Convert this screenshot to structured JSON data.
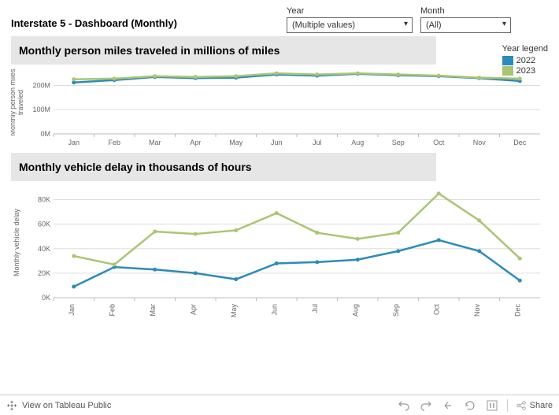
{
  "title": "Interstate 5 - Dashboard (Monthly)",
  "filters": {
    "year": {
      "label": "Year",
      "value": "(Multiple values)"
    },
    "month": {
      "label": "Month",
      "value": "(All)"
    }
  },
  "legend": {
    "title": "Year legend",
    "items": [
      {
        "label": "2022",
        "color": "#2c8bba"
      },
      {
        "label": "2023",
        "color": "#a9c574"
      }
    ]
  },
  "months": [
    "Jan",
    "Feb",
    "Mar",
    "Apr",
    "May",
    "Jun",
    "Jul",
    "Aug",
    "Sep",
    "Oct",
    "Nov",
    "Dec"
  ],
  "chart1": {
    "title": "Monthly person miles traveled in millions of miles",
    "y_axis_label": "Monthly person miles\ntraveled",
    "height": 80,
    "ylim": [
      0,
      260
    ],
    "yticks": [
      0,
      100,
      200
    ],
    "ytick_labels": [
      "0M",
      "100M",
      "200M"
    ],
    "series": [
      {
        "name": "2022",
        "color": "#2c8bba",
        "values": [
          212,
          222,
          235,
          230,
          232,
          245,
          240,
          248,
          242,
          238,
          230,
          218
        ]
      },
      {
        "name": "2023",
        "color": "#a9c574",
        "values": [
          225,
          228,
          238,
          235,
          238,
          250,
          245,
          250,
          245,
          240,
          232,
          228
        ]
      }
    ],
    "line_width": 2.5,
    "marker_radius": 2.5,
    "background": "#ffffff",
    "grid_color": "#dddddd"
  },
  "chart2": {
    "title": "Monthly vehicle delay in thousands of hours",
    "y_axis_label": "Monthly vehicle delay",
    "height": 140,
    "ylim": [
      0,
      90
    ],
    "yticks": [
      0,
      20,
      40,
      60,
      80
    ],
    "ytick_labels": [
      "0K",
      "20K",
      "40K",
      "60K",
      "80K"
    ],
    "series": [
      {
        "name": "2022",
        "color": "#2c8bba",
        "values": [
          9,
          25,
          23,
          20,
          15,
          28,
          29,
          31,
          38,
          47,
          38,
          14
        ]
      },
      {
        "name": "2023",
        "color": "#a9c574",
        "values": [
          34,
          27,
          54,
          52,
          55,
          69,
          53,
          48,
          53,
          85,
          63,
          32
        ]
      }
    ],
    "line_width": 2.5,
    "marker_radius": 2.5,
    "background": "#ffffff",
    "grid_color": "#dddddd",
    "x_tick_rotate": -90
  },
  "footer": {
    "view_text": "View on Tableau Public",
    "share_text": "Share"
  }
}
